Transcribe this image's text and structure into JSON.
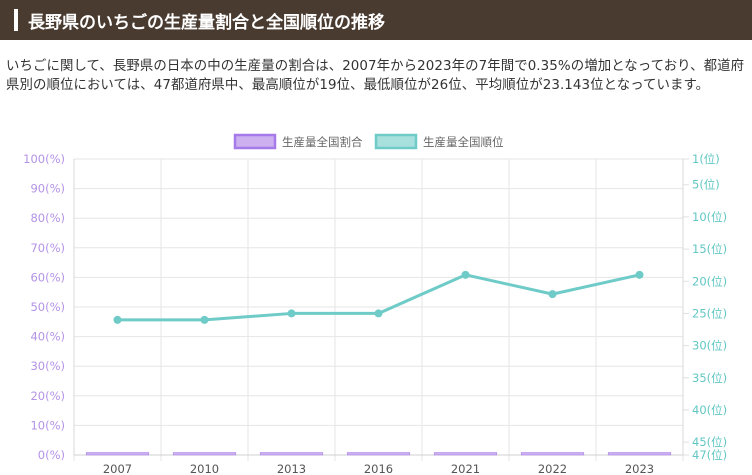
{
  "header": {
    "title": "長野県のいちごの生産量割合と全国順位の推移"
  },
  "description": "いちごに関して、長野県の日本の中の生産量の割合は、2007年から2023年の7年間で0.35%の増加となっており、都道府県別の順位においては、47都道府県中、最高順位が19位、最低順位が26位、平均順位が23.143位となっています。",
  "colors": {
    "share_fill": "#ccb0f0",
    "share_stroke": "#a67ae8",
    "rank_line": "#6ecbc8",
    "rank_point": "#6ecbc8"
  },
  "chart_data": {
    "type": "bar",
    "categories": [
      "2007",
      "2010",
      "2013",
      "2016",
      "2021",
      "2022",
      "2023"
    ],
    "series": [
      {
        "name": "生産量全国割合",
        "type": "bar",
        "axis": "left",
        "values": [
          0.5,
          0.7,
          0.7,
          0.7,
          0.8,
          0.8,
          0.85
        ]
      },
      {
        "name": "生産量全国順位",
        "type": "line",
        "axis": "right",
        "values": [
          26,
          26,
          25,
          25,
          19,
          22,
          19
        ]
      }
    ],
    "y_left": {
      "ylim": [
        0,
        100
      ],
      "ticks": [
        "100(%)",
        "90(%)",
        "80(%)",
        "70(%)",
        "60(%)",
        "50(%)",
        "40(%)",
        "30(%)",
        "20(%)",
        "10(%)",
        "0(%)"
      ]
    },
    "y_right": {
      "ylim": [
        1,
        47
      ],
      "inverted": true,
      "tick_values": [
        1,
        5,
        10,
        15,
        20,
        25,
        30,
        35,
        40,
        45,
        47
      ],
      "ticks": [
        "1(位)",
        "5(位)",
        "10(位)",
        "15(位)",
        "20(位)",
        "25(位)",
        "30(位)",
        "35(位)",
        "40(位)",
        "45(位)",
        "47(位)"
      ]
    },
    "legend": {
      "position": "top-center"
    },
    "grid": true
  }
}
